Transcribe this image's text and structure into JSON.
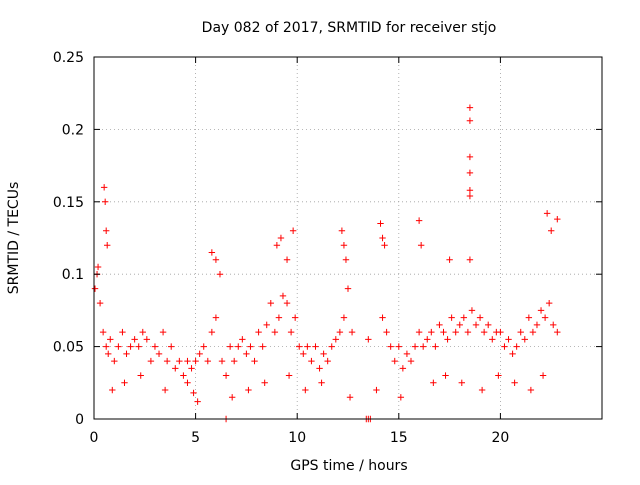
{
  "chart_data": {
    "type": "scatter",
    "title": "Day 082 of 2017, SRMTID for receiver stjo",
    "xlabel": "GPS time / hours",
    "ylabel": "SRMTID / TECUs",
    "xlim": [
      0,
      25
    ],
    "ylim": [
      0,
      0.25
    ],
    "x_ticks": [
      0,
      5,
      10,
      15,
      20
    ],
    "x_tick_labels": [
      "0",
      "5",
      "10",
      "15",
      "20"
    ],
    "y_ticks": [
      0,
      0.05,
      0.1,
      0.15,
      0.2,
      0.25
    ],
    "y_tick_labels": [
      "0",
      "0.05",
      "0.1",
      "0.15",
      "0.2",
      "0.25"
    ],
    "grid": true,
    "marker": "plus",
    "colors": {
      "series": "#ff0000",
      "axes": "#000000",
      "grid": "#a0a0a0"
    },
    "series": [
      {
        "name": "SRMTID",
        "x": [
          0.05,
          0.15,
          0.3,
          0.45,
          0.6,
          0.7,
          0.8,
          1.0,
          1.2,
          1.4,
          1.6,
          1.8,
          2.0,
          2.2,
          2.4,
          2.6,
          2.8,
          3.0,
          3.2,
          3.4,
          3.6,
          3.8,
          4.0,
          4.2,
          4.4,
          4.6,
          4.8,
          5.0,
          5.2,
          5.4,
          5.6,
          5.8,
          6.0,
          6.3,
          6.5,
          6.7,
          6.9,
          7.1,
          7.3,
          7.5,
          7.7,
          7.9,
          8.1,
          8.3,
          8.5,
          8.7,
          8.9,
          9.1,
          9.3,
          9.5,
          9.7,
          9.9,
          10.1,
          10.3,
          10.5,
          10.7,
          10.9,
          11.1,
          11.3,
          11.5,
          11.7,
          11.9,
          12.1,
          12.3,
          12.5,
          12.7,
          13.5,
          14.2,
          14.4,
          14.6,
          14.8,
          15.0,
          15.2,
          15.4,
          15.6,
          15.8,
          16.0,
          16.2,
          16.4,
          16.6,
          16.8,
          17.0,
          17.2,
          17.4,
          17.6,
          17.8,
          18.0,
          18.2,
          18.4,
          18.6,
          18.8,
          19.0,
          19.2,
          19.4,
          19.6,
          19.8,
          20.0,
          20.2,
          20.4,
          20.6,
          20.8,
          21.0,
          21.2,
          21.4,
          21.6,
          21.8,
          22.0,
          22.2,
          22.4,
          22.6,
          22.8,
          0.5,
          0.55,
          0.6,
          0.65,
          5.8,
          6.0,
          6.2,
          9.0,
          9.2,
          9.5,
          9.8,
          12.2,
          12.3,
          12.4,
          14.1,
          14.2,
          14.3,
          16.0,
          16.1,
          17.5,
          18.5,
          18.5,
          18.5,
          18.5,
          18.5,
          18.5,
          18.5,
          22.3,
          22.5,
          22.8,
          0.2,
          0.9,
          1.5,
          2.3,
          3.5,
          4.6,
          5.1,
          6.8,
          7.6,
          8.4,
          9.6,
          10.4,
          11.2,
          12.6,
          13.9,
          15.1,
          16.7,
          17.3,
          18.1,
          19.1,
          19.9,
          20.7,
          21.5,
          22.1,
          4.9,
          6.5,
          13.4,
          13.5,
          13.6
        ],
        "y": [
          0.09,
          0.1,
          0.08,
          0.06,
          0.05,
          0.045,
          0.055,
          0.04,
          0.05,
          0.06,
          0.045,
          0.05,
          0.055,
          0.05,
          0.06,
          0.055,
          0.04,
          0.05,
          0.045,
          0.06,
          0.04,
          0.05,
          0.035,
          0.04,
          0.03,
          0.04,
          0.035,
          0.04,
          0.045,
          0.05,
          0.04,
          0.06,
          0.07,
          0.04,
          0.03,
          0.05,
          0.04,
          0.05,
          0.055,
          0.045,
          0.05,
          0.04,
          0.06,
          0.05,
          0.065,
          0.08,
          0.06,
          0.07,
          0.085,
          0.08,
          0.06,
          0.07,
          0.05,
          0.045,
          0.05,
          0.04,
          0.05,
          0.035,
          0.045,
          0.04,
          0.05,
          0.055,
          0.06,
          0.07,
          0.09,
          0.06,
          0.055,
          0.07,
          0.06,
          0.05,
          0.04,
          0.05,
          0.035,
          0.045,
          0.04,
          0.05,
          0.06,
          0.05,
          0.055,
          0.06,
          0.05,
          0.065,
          0.06,
          0.055,
          0.07,
          0.06,
          0.065,
          0.07,
          0.06,
          0.075,
          0.065,
          0.07,
          0.06,
          0.065,
          0.055,
          0.06,
          0.06,
          0.05,
          0.055,
          0.045,
          0.05,
          0.06,
          0.055,
          0.07,
          0.06,
          0.065,
          0.075,
          0.07,
          0.08,
          0.065,
          0.06,
          0.16,
          0.15,
          0.13,
          0.12,
          0.115,
          0.11,
          0.1,
          0.12,
          0.125,
          0.11,
          0.13,
          0.13,
          0.12,
          0.11,
          0.135,
          0.125,
          0.12,
          0.137,
          0.12,
          0.11,
          0.215,
          0.206,
          0.181,
          0.17,
          0.158,
          0.154,
          0.11,
          0.142,
          0.13,
          0.138,
          0.105,
          0.02,
          0.025,
          0.03,
          0.02,
          0.025,
          0.012,
          0.015,
          0.02,
          0.025,
          0.03,
          0.02,
          0.025,
          0.015,
          0.02,
          0.015,
          0.025,
          0.03,
          0.025,
          0.02,
          0.03,
          0.025,
          0.02,
          0.03,
          0.018,
          0.0,
          0.0,
          0.0,
          0.0
        ]
      }
    ]
  }
}
